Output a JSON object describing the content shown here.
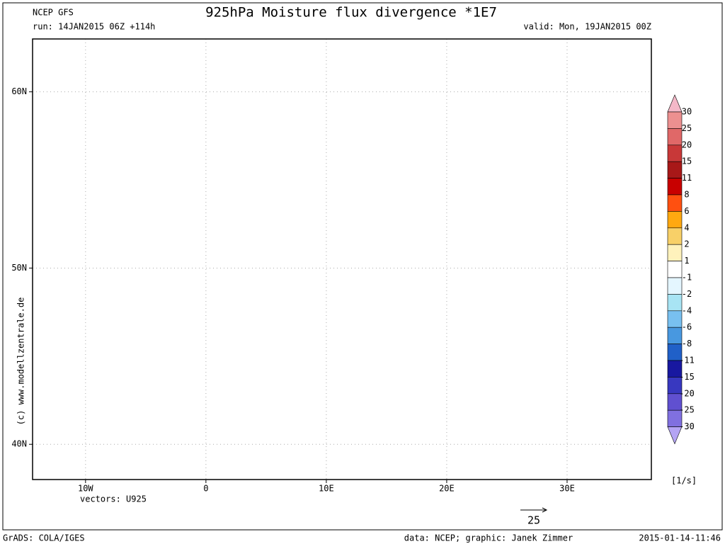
{
  "header": {
    "model": "NCEP GFS",
    "title": "925hPa Moisture flux divergence *1E7",
    "run": "run: 14JAN2015 06Z +114h",
    "valid": "valid: Mon, 19JAN2015 00Z"
  },
  "map": {
    "xlim": [
      -14.4,
      37
    ],
    "ylim": [
      38,
      63
    ],
    "xticks": [
      {
        "value": -10,
        "label": "10W"
      },
      0,
      {
        "value": 10,
        "label": "10E"
      },
      {
        "value": 20,
        "label": "20E"
      },
      {
        "value": 30,
        "label": "30E"
      }
    ],
    "yticks": [
      {
        "value": 40,
        "label": "40N"
      },
      {
        "value": 50,
        "label": "50N"
      },
      {
        "value": 60,
        "label": "60N"
      }
    ],
    "grid": true
  },
  "vectors": {
    "label": "vectors: U925",
    "reference": 25
  },
  "colorbar": {
    "levels": [
      30,
      25,
      20,
      15,
      11,
      8,
      6,
      4,
      2,
      1,
      -1,
      -2,
      -4,
      -6,
      -8,
      -11,
      -15,
      -20,
      -25,
      -30
    ],
    "colors": [
      "#f4b8c8",
      "#ec9090",
      "#e06868",
      "#c83838",
      "#a81818",
      "#c80000",
      "#ff5010",
      "#ffa810",
      "#f8d068",
      "#fff2bc",
      "#ffffff",
      "#e4f6ff",
      "#a8e4f4",
      "#78c0f0",
      "#4898e0",
      "#2060c8",
      "#1818a0",
      "#3838c0",
      "#6050d0",
      "#8070e0",
      "#b4a4f4"
    ],
    "unit": "[1/s]"
  },
  "credits": {
    "site": "(c) www.modellzentrale.de",
    "software": "GrADS: COLA/IGES",
    "source": "data: NCEP; graphic: Janek Zimmer",
    "timestamp": "2015-01-14-11:46"
  }
}
